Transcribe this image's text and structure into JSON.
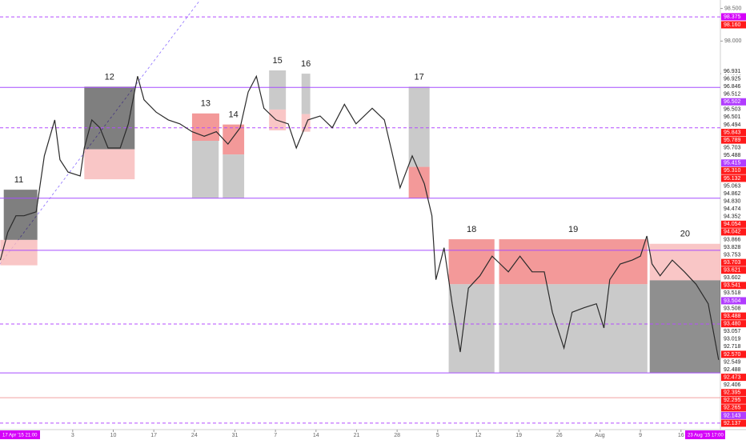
{
  "chart_data": {
    "type": "line",
    "color": "#2b2b2b",
    "xlim": [
      3.45,
      127.8
    ],
    "ylim": [
      92.04,
      98.63
    ],
    "x": [
      3.5,
      4.8,
      6.2,
      7.6,
      9.7,
      11.1,
      12.9,
      13.8,
      15.2,
      17.3,
      18.0,
      19.3,
      20.7,
      22.1,
      24.2,
      25.6,
      27.2,
      28.3,
      30.4,
      32.5,
      34.5,
      36.6,
      38.7,
      40.8,
      42.8,
      44.9,
      46.3,
      47.7,
      49.0,
      51.1,
      53.2,
      54.6,
      56.6,
      58.7,
      60.8,
      62.9,
      64.9,
      67.7,
      69.8,
      71.1,
      72.5,
      74.6,
      76.7,
      78.0,
      78.7,
      80.1,
      81.5,
      82.9,
      84.3,
      86.3,
      88.4,
      89.8,
      91.2,
      93.2,
      95.3,
      97.4,
      98.8,
      100.8,
      102.2,
      104.3,
      106.4,
      107.7,
      108.7,
      110.5,
      112.6,
      114.0,
      115.1,
      116.0,
      117.4,
      119.5,
      121.6,
      123.6,
      125.7,
      127.5
    ],
    "values": [
      94.64,
      95.07,
      95.32,
      95.32,
      95.38,
      96.24,
      96.79,
      96.18,
      95.99,
      95.93,
      96.36,
      96.79,
      96.67,
      96.36,
      96.36,
      96.73,
      97.46,
      97.1,
      96.91,
      96.79,
      96.73,
      96.61,
      96.54,
      96.61,
      96.42,
      96.67,
      97.22,
      97.46,
      96.97,
      96.79,
      96.73,
      96.36,
      96.79,
      96.85,
      96.67,
      97.03,
      96.73,
      96.97,
      96.79,
      96.3,
      95.75,
      96.24,
      95.81,
      95.32,
      94.34,
      94.83,
      93.97,
      93.23,
      94.21,
      94.4,
      94.7,
      94.58,
      94.46,
      94.7,
      94.46,
      94.46,
      93.84,
      93.29,
      93.84,
      93.91,
      93.97,
      93.6,
      94.34,
      94.58,
      94.64,
      94.7,
      95.01,
      94.58,
      94.4,
      94.64,
      94.46,
      94.27,
      93.97,
      93.11
    ],
    "levels": [
      {
        "value": 98.37,
        "color": "#b44cff",
        "dash": true
      },
      {
        "value": 97.29,
        "color": "#a64dff",
        "dash": false
      },
      {
        "value": 96.67,
        "color": "#b44cff",
        "dash": true
      },
      {
        "value": 95.59,
        "color": "#a64dff",
        "dash": false
      },
      {
        "value": 94.79,
        "color": "#a64dff",
        "dash": false
      },
      {
        "value": 93.66,
        "color": "#b44cff",
        "dash": true
      },
      {
        "value": 92.91,
        "color": "#a64dff",
        "dash": false
      },
      {
        "value": 92.53,
        "color": "#f2a0a0",
        "dash": false
      },
      {
        "value": 92.14,
        "color": "#b44cff",
        "dash": true
      }
    ],
    "zones": [
      {
        "label": "11",
        "boxes": [
          {
            "x": [
              4.1,
              9.9
            ],
            "y": [
              95.72,
              94.95
            ],
            "color": "#00000080"
          },
          {
            "x": [
              3.5,
              9.9
            ],
            "y": [
              94.95,
              94.56
            ],
            "color": "#f7b8b8cc"
          }
        ]
      },
      {
        "label": "12",
        "boxes": [
          {
            "x": [
              18.0,
              26.7
            ],
            "y": [
              97.3,
              96.34
            ],
            "color": "#00000080"
          },
          {
            "x": [
              18.0,
              26.7
            ],
            "y": [
              96.34,
              95.88
            ],
            "color": "#f7b8b8cc"
          }
        ]
      },
      {
        "label": "13",
        "boxes": [
          {
            "x": [
              36.6,
              41.3
            ],
            "y": [
              96.89,
              96.47
            ],
            "color": "#f07f7fcc"
          },
          {
            "x": [
              36.6,
              41.2
            ],
            "y": [
              96.47,
              95.59
            ],
            "color": "#bdbdbdcc"
          }
        ]
      },
      {
        "label": "14",
        "boxes": [
          {
            "x": [
              41.9,
              45.6
            ],
            "y": [
              96.72,
              96.26
            ],
            "color": "#f07f7fcc"
          },
          {
            "x": [
              41.9,
              45.6
            ],
            "y": [
              96.26,
              95.59
            ],
            "color": "#bdbdbdcc"
          }
        ]
      },
      {
        "label": "15",
        "boxes": [
          {
            "x": [
              49.9,
              52.8
            ],
            "y": [
              97.55,
              96.95
            ],
            "color": "#bdbdbdcc"
          },
          {
            "x": [
              49.9,
              52.8
            ],
            "y": [
              96.95,
              96.63
            ],
            "color": "#f7b8b8cc"
          }
        ]
      },
      {
        "label": "16",
        "boxes": [
          {
            "x": [
              55.5,
              57.0
            ],
            "y": [
              97.5,
              96.88
            ],
            "color": "#bdbdbdcc"
          },
          {
            "x": [
              55.5,
              57.0
            ],
            "y": [
              96.88,
              96.61
            ],
            "color": "#f7b8b8cc"
          }
        ]
      },
      {
        "label": "17",
        "boxes": [
          {
            "x": [
              74.0,
              77.6
            ],
            "y": [
              97.3,
              96.07
            ],
            "color": "#bdbdbdcc"
          },
          {
            "x": [
              74.0,
              77.6
            ],
            "y": [
              96.07,
              95.59
            ],
            "color": "#f07f7fcc"
          }
        ]
      },
      {
        "label": "18",
        "boxes": [
          {
            "x": [
              80.9,
              88.8
            ],
            "y": [
              94.96,
              94.27
            ],
            "color": "#f07f7fcc"
          },
          {
            "x": [
              80.9,
              88.8
            ],
            "y": [
              94.27,
              92.91
            ],
            "color": "#bdbdbdcc"
          }
        ]
      },
      {
        "label": "19",
        "boxes": [
          {
            "x": [
              89.6,
              115.2
            ],
            "y": [
              94.96,
              94.27
            ],
            "color": "#f07f7fcc"
          },
          {
            "x": [
              89.6,
              115.2
            ],
            "y": [
              94.27,
              92.91
            ],
            "color": "#bdbdbdcc"
          }
        ]
      },
      {
        "label": "20",
        "boxes": [
          {
            "x": [
              115.6,
              127.8
            ],
            "y": [
              94.89,
              94.33
            ],
            "color": "#f7b8b8cc"
          },
          {
            "x": [
              115.6,
              127.8
            ],
            "y": [
              94.33,
              92.91
            ],
            "color": "#00000070"
          }
        ]
      }
    ],
    "yticks": [
      {
        "value": 98.5,
        "label": "98.500"
      },
      {
        "value": 98.0,
        "label": "98.000"
      },
      {
        "value": 97.5,
        "label": "97.500"
      }
    ],
    "xticks": [
      {
        "value": 16,
        "label": "3"
      },
      {
        "value": 23,
        "label": "10"
      },
      {
        "value": 30,
        "label": "17"
      },
      {
        "value": 37,
        "label": "24"
      },
      {
        "value": 44,
        "label": "31"
      },
      {
        "value": 51,
        "label": "7"
      },
      {
        "value": 58,
        "label": "14"
      },
      {
        "value": 65,
        "label": "21"
      },
      {
        "value": 72,
        "label": "28"
      },
      {
        "value": 79,
        "label": "5"
      },
      {
        "value": 86,
        "label": "12"
      },
      {
        "value": 93,
        "label": "19"
      },
      {
        "value": 100,
        "label": "26"
      },
      {
        "value": 107,
        "label": "Aug"
      },
      {
        "value": 114,
        "label": "9"
      },
      {
        "value": 121,
        "label": "16"
      }
    ],
    "start_label": "17 Apr '15  21:00",
    "end_label": "23 Aug '15  17:00",
    "price_labels": [
      {
        "label": "98.375",
        "bg": "#d500f9"
      },
      {
        "label": "98.160",
        "bg": "#ff1a1a"
      },
      {
        "label": "96.931",
        "bg": "#ffffff"
      },
      {
        "label": "96.925",
        "bg": "#ffffff"
      },
      {
        "label": "96.846",
        "bg": "#ffffff"
      },
      {
        "label": "96.512",
        "bg": "#ffffff"
      },
      {
        "label": "96.502",
        "bg": "#b13cff"
      },
      {
        "label": "96.503",
        "bg": "#ffffff"
      },
      {
        "label": "96.501",
        "bg": "#ffffff"
      },
      {
        "label": "96.494",
        "bg": "#ffffff"
      },
      {
        "label": "95.843",
        "bg": "#ff1a1a"
      },
      {
        "label": "95.789",
        "bg": "#ff1a1a"
      },
      {
        "label": "95.703",
        "bg": "#ffffff"
      },
      {
        "label": "95.488",
        "bg": "#ffffff"
      },
      {
        "label": "95.415",
        "bg": "#b13cff"
      },
      {
        "label": "95.310",
        "bg": "#ff1a1a"
      },
      {
        "label": "95.132",
        "bg": "#ff1a1a"
      },
      {
        "label": "95.063",
        "bg": "#ffffff"
      },
      {
        "label": "94.862",
        "bg": "#ffffff"
      },
      {
        "label": "94.830",
        "bg": "#ffffff"
      },
      {
        "label": "94.474",
        "bg": "#ffffff"
      },
      {
        "label": "94.352",
        "bg": "#ffffff"
      },
      {
        "label": "94.054",
        "bg": "#ff1a1a"
      },
      {
        "label": "94.042",
        "bg": "#ff1a1a"
      },
      {
        "label": "93.866",
        "bg": "#ffffff"
      },
      {
        "label": "93.828",
        "bg": "#ffffff"
      },
      {
        "label": "93.753",
        "bg": "#ffffff"
      },
      {
        "label": "93.703",
        "bg": "#ff1a1a"
      },
      {
        "label": "93.621",
        "bg": "#ff1a1a"
      },
      {
        "label": "93.602",
        "bg": "#ffffff"
      },
      {
        "label": "93.541",
        "bg": "#ff1a1a"
      },
      {
        "label": "93.518",
        "bg": "#ffffff"
      },
      {
        "label": "93.504",
        "bg": "#b13cff"
      },
      {
        "label": "93.508",
        "bg": "#ffffff"
      },
      {
        "label": "93.488",
        "bg": "#ff1a1a"
      },
      {
        "label": "93.480",
        "bg": "#ff1a1a"
      },
      {
        "label": "93.057",
        "bg": "#ffffff"
      },
      {
        "label": "93.019",
        "bg": "#ffffff"
      },
      {
        "label": "92.718",
        "bg": "#ffffff"
      },
      {
        "label": "92.570",
        "bg": "#ff1a1a"
      },
      {
        "label": "92.549",
        "bg": "#ffffff"
      },
      {
        "label": "92.488",
        "bg": "#ffffff"
      },
      {
        "label": "92.473",
        "bg": "#ff1a1a"
      },
      {
        "label": "92.406",
        "bg": "#ffffff"
      },
      {
        "label": "92.395",
        "bg": "#ff1a1a"
      },
      {
        "label": "92.295",
        "bg": "#ff1a1a"
      },
      {
        "label": "92.265",
        "bg": "#ff1a1a"
      },
      {
        "label": "92.143",
        "bg": "#b13cff"
      },
      {
        "label": "92.137",
        "bg": "#ff1a1a"
      }
    ]
  }
}
